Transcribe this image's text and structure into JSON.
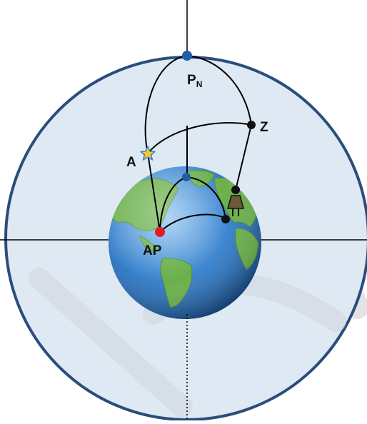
{
  "labels": {
    "pole": "P",
    "pole_subscript": "N",
    "zenith": "Z",
    "star": "A",
    "projection": "AP"
  },
  "colors": {
    "sphere_fill": "#dfe9f3",
    "sphere_stroke": "#2a4d7c",
    "ocean_light": "#79b4ea",
    "ocean_dark": "#1f5fa8",
    "land": "#6ab04c",
    "pole_dot": "#1f5fa8",
    "projection_dot": "#e31b23",
    "star_fill": "#f7c82a",
    "star_stroke": "#3c7fd0",
    "observer": "#6b5a3a",
    "watermark": "#d6d6d6"
  },
  "icons": {
    "star": "star-icon",
    "observer": "observer-icon"
  }
}
